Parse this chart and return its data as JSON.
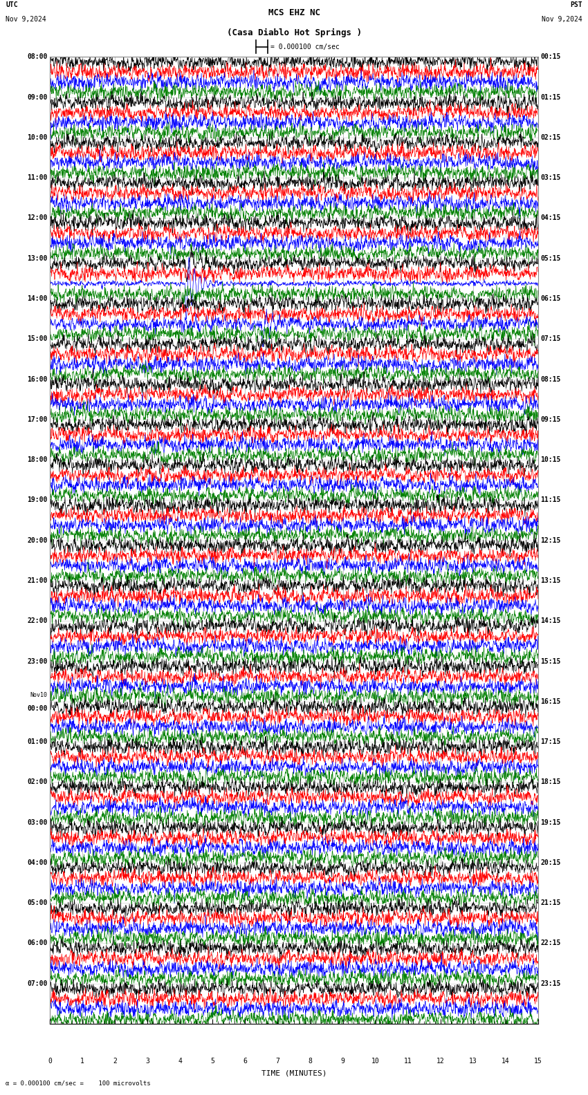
{
  "title_line1": "MCS EHZ NC",
  "title_line2": "(Casa Diablo Hot Springs )",
  "scale_text": "= 0.000100 cm/sec",
  "utc_label": "UTC",
  "pst_label": "PST",
  "date_left": "Nov 9,2024",
  "date_right": "Nov 9,2024",
  "xlabel": "TIME (MINUTES)",
  "footer_text": "= 0.000100 cm/sec =    100 microvolts",
  "bg_color": "#ffffff",
  "colors": [
    "black",
    "red",
    "blue",
    "green"
  ],
  "num_rows": 24,
  "traces_per_row": 4,
  "minutes_per_row": 15,
  "utc_labels": [
    "08:00",
    "09:00",
    "10:00",
    "11:00",
    "12:00",
    "13:00",
    "14:00",
    "15:00",
    "16:00",
    "17:00",
    "18:00",
    "19:00",
    "20:00",
    "21:00",
    "22:00",
    "23:00",
    "Nov10\n00:00",
    "01:00",
    "02:00",
    "03:00",
    "04:00",
    "05:00",
    "06:00",
    "07:00"
  ],
  "pst_labels": [
    "00:15",
    "01:15",
    "02:15",
    "03:15",
    "04:15",
    "05:15",
    "06:15",
    "07:15",
    "08:15",
    "09:15",
    "10:15",
    "11:15",
    "12:15",
    "13:15",
    "14:15",
    "15:15",
    "16:15",
    "17:15",
    "18:15",
    "19:15",
    "20:15",
    "21:15",
    "22:15",
    "23:15"
  ],
  "noise_amplitude_black": 0.38,
  "noise_amplitude_red": 0.18,
  "noise_amplitude_blue": 0.32,
  "noise_amplitude_green": 0.22,
  "earthquake_row": 5,
  "earthquake_minute": 4.15,
  "earthquake_amplitude_blue": 8.0,
  "earthquake_amplitude_black": 2.0,
  "earthquake_row2": 6,
  "earthquake2_minute": 6.5,
  "earthquake2_amplitude": 1.5,
  "grid_color": "#999999",
  "grid_lw": 0.5,
  "trace_lw": 0.5,
  "font_size_labels": 7,
  "font_size_title": 9,
  "font_size_axis": 7
}
